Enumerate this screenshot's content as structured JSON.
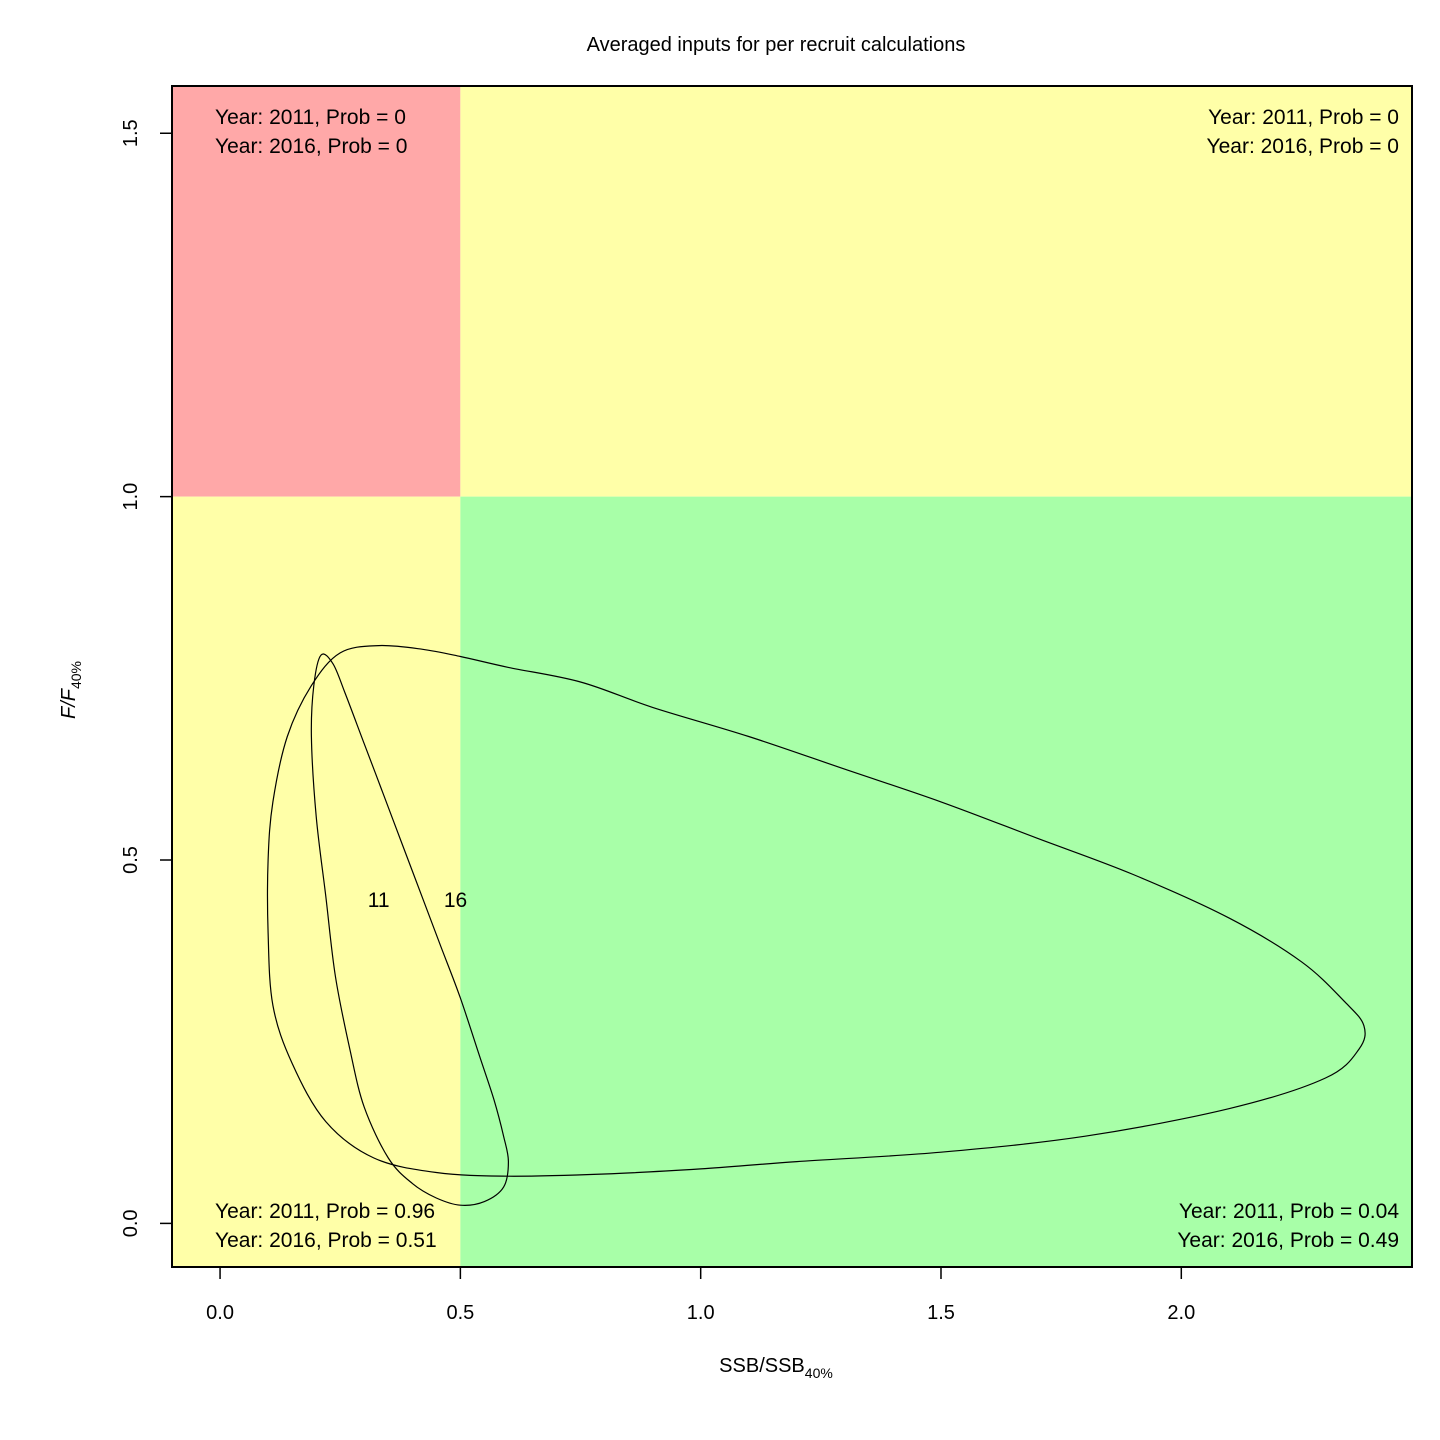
{
  "chart_data": {
    "type": "kobe_plot",
    "title": "Averaged inputs for per recruit calculations",
    "xlabel": {
      "main": "SSB/SSB",
      "sub": "40%"
    },
    "ylabel": {
      "main": "F/F",
      "sub": "40%"
    },
    "xlim": [
      -0.1,
      2.48
    ],
    "ylim": [
      -0.06,
      1.565
    ],
    "x_ticks": [
      {
        "value": 0.0,
        "label": "0.0"
      },
      {
        "value": 0.5,
        "label": "0.5"
      },
      {
        "value": 1.0,
        "label": "1.0"
      },
      {
        "value": 1.5,
        "label": "1.5"
      },
      {
        "value": 2.0,
        "label": "2.0"
      }
    ],
    "y_ticks": [
      {
        "value": 0.0,
        "label": "0.0"
      },
      {
        "value": 0.5,
        "label": "0.5"
      },
      {
        "value": 1.0,
        "label": "1.0"
      },
      {
        "value": 1.5,
        "label": "1.5"
      }
    ],
    "thresholds": {
      "x": 0.5,
      "y": 1.0
    },
    "quadrants": [
      {
        "id": "top-left",
        "color": "#FFA8A8",
        "lines": [
          "Year: 2011, Prob = 0",
          "Year: 2016, Prob = 0"
        ]
      },
      {
        "id": "top-right",
        "color": "#FFFFA8",
        "lines": [
          "Year: 2011, Prob = 0",
          "Year: 2016, Prob = 0"
        ]
      },
      {
        "id": "bottom-left",
        "color": "#FFFFA8",
        "lines": [
          "Year: 2011, Prob = 0.96",
          "Year: 2016, Prob = 0.51"
        ]
      },
      {
        "id": "bottom-right",
        "color": "#A8FFA8",
        "lines": [
          "Year: 2011, Prob = 0.04",
          "Year: 2016, Prob = 0.49"
        ]
      }
    ],
    "points": [
      {
        "label": "11",
        "x": 0.33,
        "y": 0.445
      },
      {
        "label": "16",
        "x": 0.49,
        "y": 0.445
      }
    ],
    "ellipses": [
      {
        "name": "2011",
        "points": [
          [
            0.21,
            0.782
          ],
          [
            0.235,
            0.77
          ],
          [
            0.26,
            0.73
          ],
          [
            0.3,
            0.66
          ],
          [
            0.34,
            0.59
          ],
          [
            0.38,
            0.52
          ],
          [
            0.42,
            0.45
          ],
          [
            0.46,
            0.38
          ],
          [
            0.5,
            0.31
          ],
          [
            0.54,
            0.23
          ],
          [
            0.57,
            0.17
          ],
          [
            0.59,
            0.12
          ],
          [
            0.6,
            0.085
          ],
          [
            0.59,
            0.05
          ],
          [
            0.55,
            0.03
          ],
          [
            0.5,
            0.025
          ],
          [
            0.45,
            0.035
          ],
          [
            0.4,
            0.055
          ],
          [
            0.35,
            0.09
          ],
          [
            0.3,
            0.16
          ],
          [
            0.27,
            0.24
          ],
          [
            0.24,
            0.34
          ],
          [
            0.22,
            0.45
          ],
          [
            0.2,
            0.56
          ],
          [
            0.19,
            0.67
          ],
          [
            0.195,
            0.74
          ],
          [
            0.21,
            0.782
          ]
        ]
      },
      {
        "name": "2016",
        "points": [
          [
            0.33,
            0.795
          ],
          [
            0.42,
            0.79
          ],
          [
            0.5,
            0.78
          ],
          [
            0.6,
            0.765
          ],
          [
            0.75,
            0.745
          ],
          [
            0.9,
            0.71
          ],
          [
            1.1,
            0.67
          ],
          [
            1.3,
            0.625
          ],
          [
            1.5,
            0.58
          ],
          [
            1.7,
            0.53
          ],
          [
            1.9,
            0.48
          ],
          [
            2.1,
            0.42
          ],
          [
            2.25,
            0.36
          ],
          [
            2.34,
            0.305
          ],
          [
            2.38,
            0.272
          ],
          [
            2.37,
            0.24
          ],
          [
            2.3,
            0.2
          ],
          [
            2.1,
            0.158
          ],
          [
            1.8,
            0.12
          ],
          [
            1.5,
            0.098
          ],
          [
            1.2,
            0.085
          ],
          [
            1.0,
            0.075
          ],
          [
            0.8,
            0.068
          ],
          [
            0.6,
            0.065
          ],
          [
            0.45,
            0.07
          ],
          [
            0.32,
            0.09
          ],
          [
            0.22,
            0.14
          ],
          [
            0.15,
            0.22
          ],
          [
            0.11,
            0.3
          ],
          [
            0.1,
            0.4
          ],
          [
            0.1,
            0.5
          ],
          [
            0.11,
            0.58
          ],
          [
            0.14,
            0.67
          ],
          [
            0.19,
            0.74
          ],
          [
            0.25,
            0.785
          ],
          [
            0.33,
            0.795
          ]
        ]
      }
    ]
  }
}
